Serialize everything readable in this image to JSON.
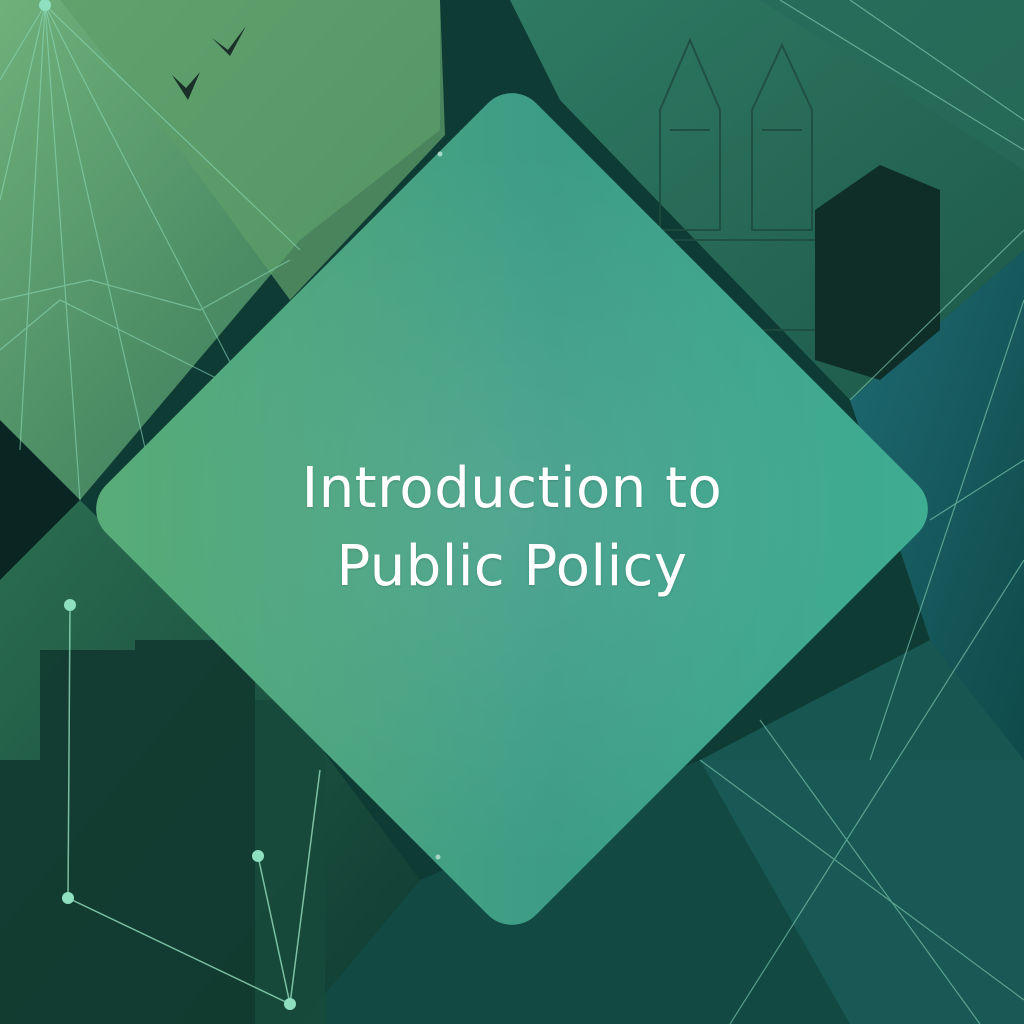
{
  "slide": {
    "title_lines": [
      "Introduction to",
      "Public Policy"
    ]
  },
  "colors": {
    "background_dark": "#0b2f2a",
    "card_light": "#5aad78",
    "card_mid": "#3c9c86",
    "card_dark": "#2f7f6c",
    "line_accent": "#8fe0c0",
    "text": "#ffffff"
  },
  "icons": [
    "bird-icon",
    "tower-illustration",
    "building-silhouette",
    "network-node"
  ]
}
